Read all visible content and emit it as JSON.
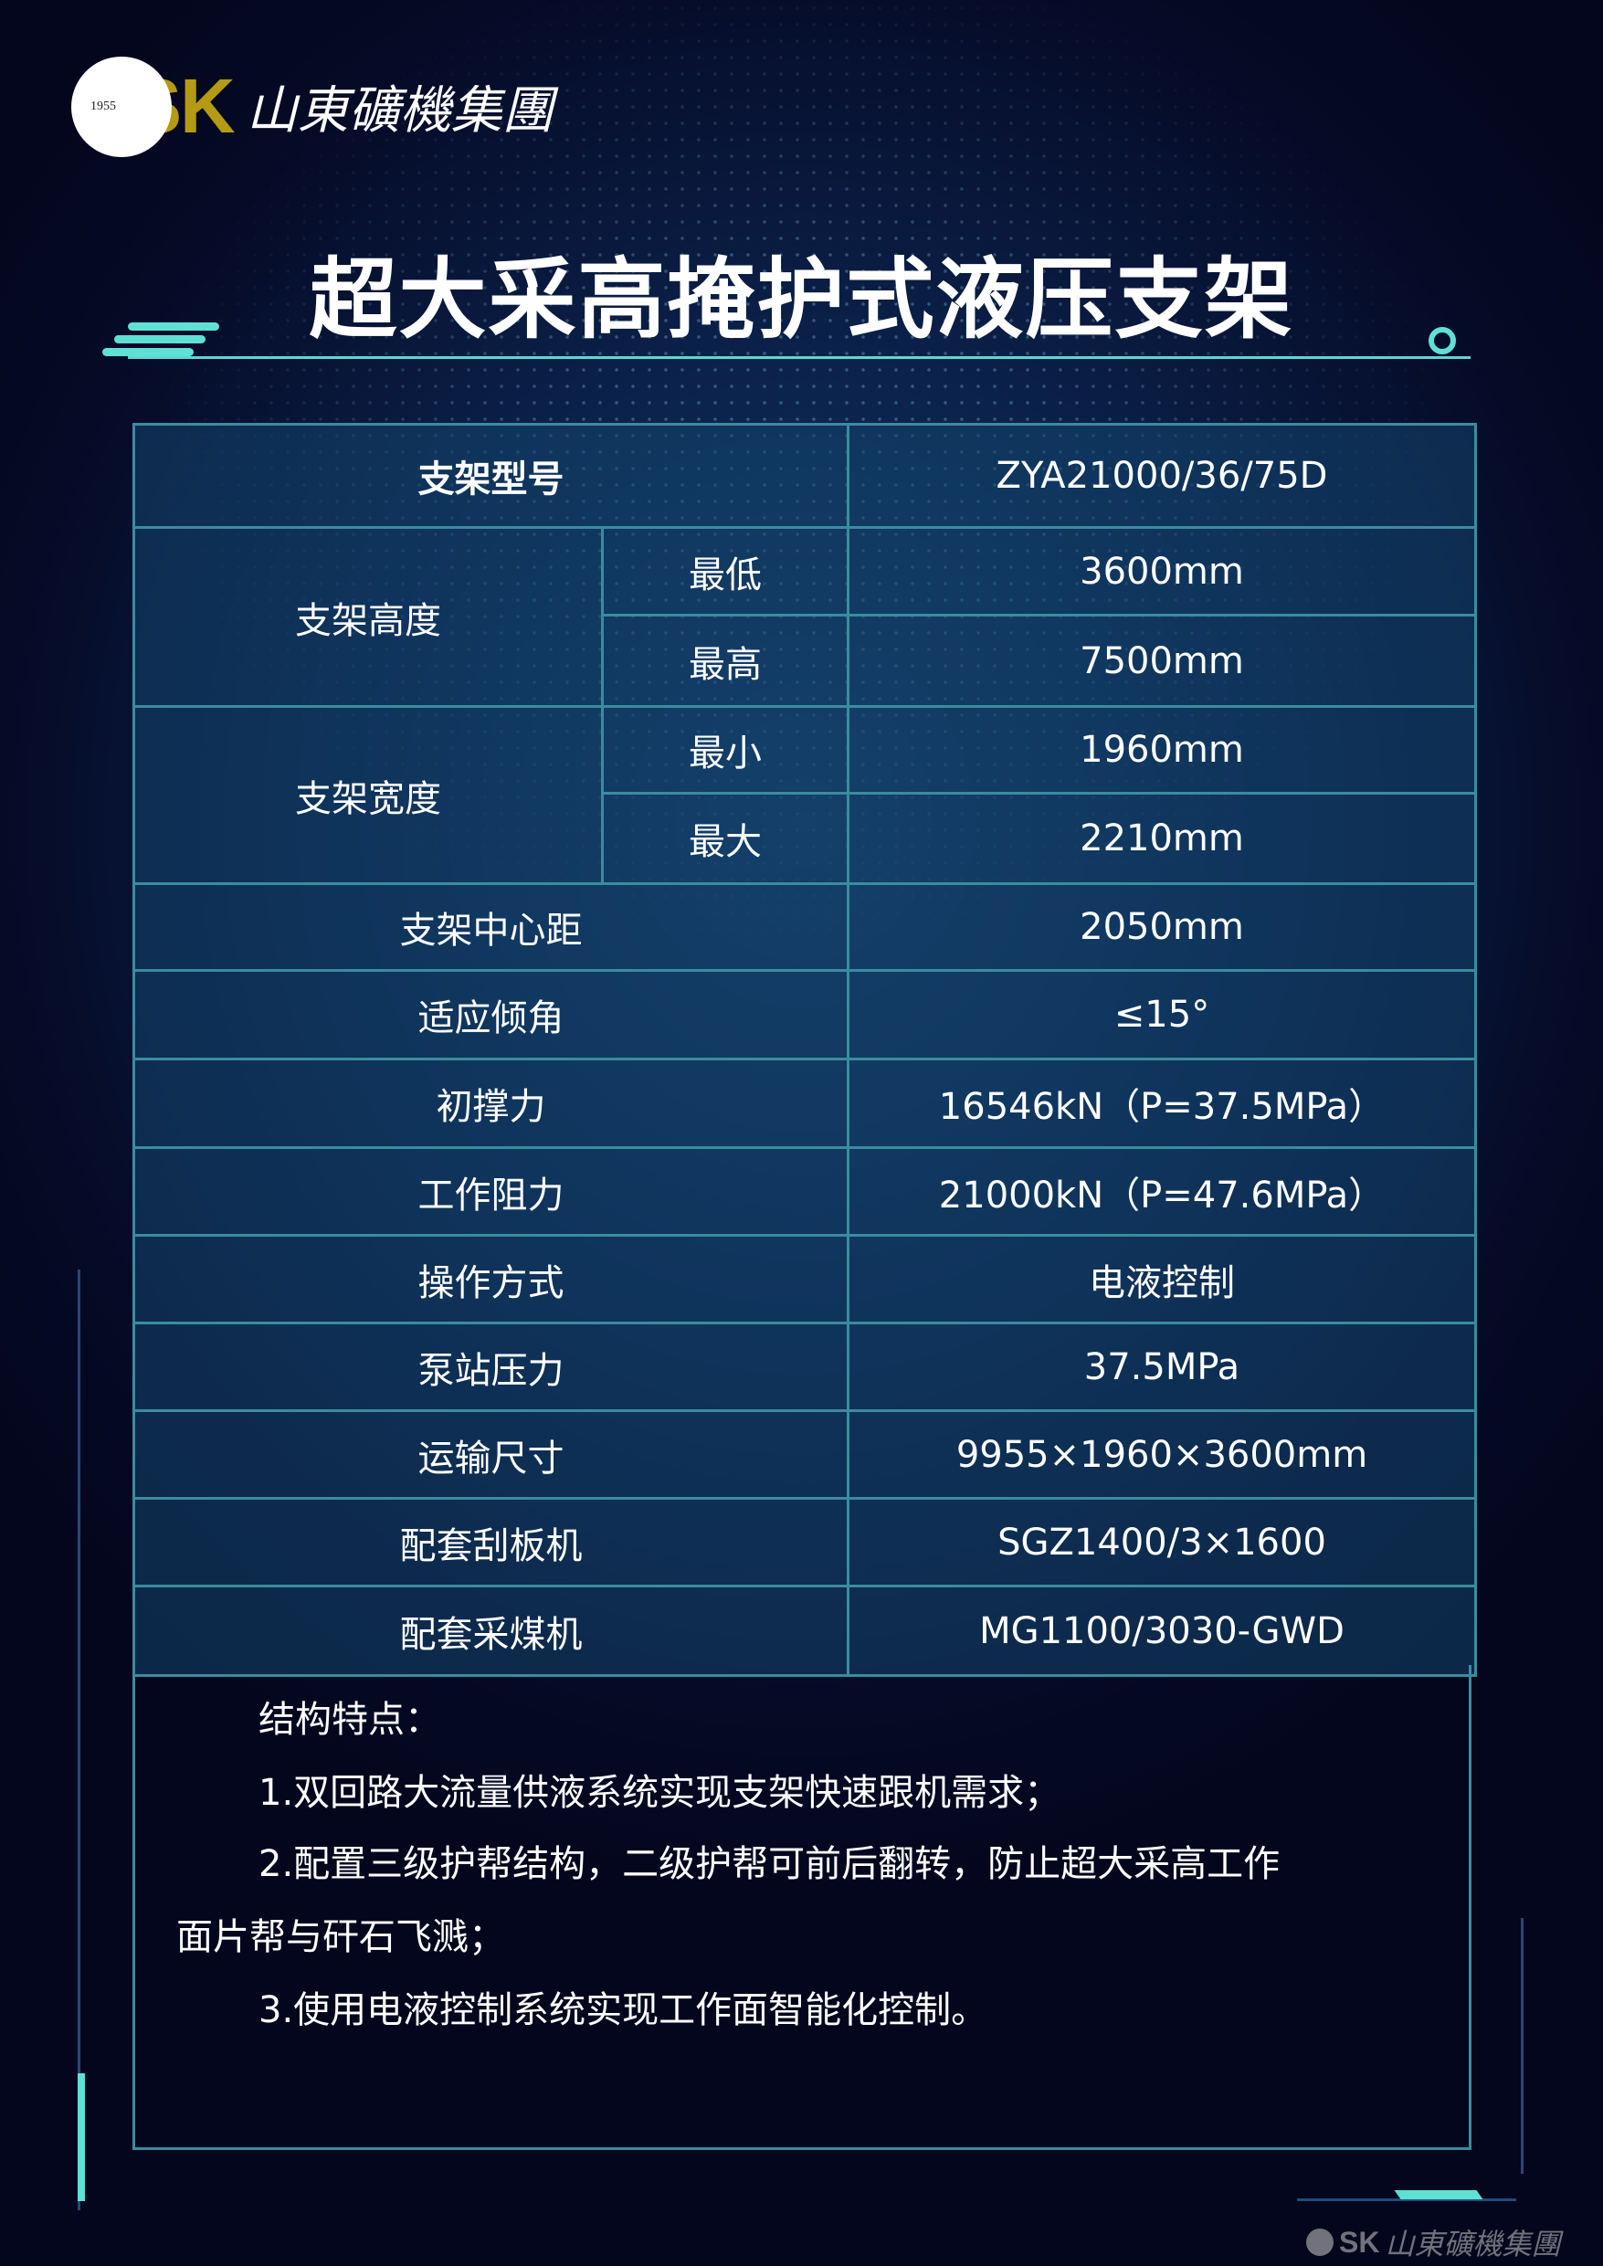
{
  "brand": {
    "year": "1955",
    "mark": "SK",
    "name": "山東礦機集團"
  },
  "title": "超大采高掩护式液压支架",
  "accent_color": "#5fe0d4",
  "table": {
    "model": {
      "label": "支架型号",
      "value": "ZYA21000/36/75D"
    },
    "height": {
      "label": "支架高度",
      "rows": [
        {
          "sub": "最低",
          "value": "3600mm"
        },
        {
          "sub": "最高",
          "value": "7500mm"
        }
      ]
    },
    "width": {
      "label": "支架宽度",
      "rows": [
        {
          "sub": "最小",
          "value": "1960mm"
        },
        {
          "sub": "最大",
          "value": "2210mm"
        }
      ]
    },
    "rows": [
      {
        "label": "支架中心距",
        "value": "2050mm"
      },
      {
        "label": "适应倾角",
        "value": "≤15°"
      },
      {
        "label": "初撑力",
        "value": "16546kN（P=37.5MPa）"
      },
      {
        "label": "工作阻力",
        "value": "21000kN（P=47.6MPa）"
      },
      {
        "label": "操作方式",
        "value": "电液控制"
      },
      {
        "label": "泵站压力",
        "value": "37.5MPa"
      },
      {
        "label": "运输尺寸",
        "value": "9955×1960×3600mm"
      },
      {
        "label": "配套刮板机",
        "value": "SGZ1400/3×1600"
      },
      {
        "label": "配套采煤机",
        "value": "MG1100/3030-GWD"
      }
    ]
  },
  "features": {
    "heading": "结构特点：",
    "item1": "1.双回路大流量供液系统实现支架快速跟机需求；",
    "item2a": "2.配置三级护帮结构，二级护帮可前后翻转，防止超大采高工作",
    "item2b": "面片帮与矸石飞溅；",
    "item3": "3.使用电液控制系统实现工作面智能化控制。"
  }
}
